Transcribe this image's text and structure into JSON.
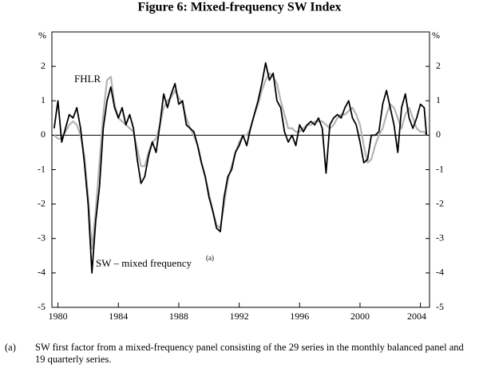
{
  "chart_data": {
    "type": "line",
    "title": "Figure 6: Mixed-frequency SW Index",
    "y_label": "%",
    "annotations": [
      "FHLR",
      "SW – mixed frequency",
      "(a)"
    ],
    "footnote": {
      "marker": "(a)",
      "text": "SW first factor from a mixed-frequency panel consisting of the 29 series in the monthly balanced panel and 19 quarterly series."
    },
    "x": [
      1979.75,
      1980,
      1980.25,
      1980.5,
      1980.75,
      1981,
      1981.25,
      1981.5,
      1981.75,
      1982,
      1982.25,
      1982.5,
      1982.75,
      1983,
      1983.25,
      1983.5,
      1983.75,
      1984,
      1984.25,
      1984.5,
      1984.75,
      1985,
      1985.25,
      1985.5,
      1985.75,
      1986,
      1986.25,
      1986.5,
      1986.75,
      1987,
      1987.25,
      1987.5,
      1987.75,
      1988,
      1988.25,
      1988.5,
      1988.75,
      1989,
      1989.25,
      1989.5,
      1989.75,
      1990,
      1990.25,
      1990.5,
      1990.75,
      1991,
      1991.25,
      1991.5,
      1991.75,
      1992,
      1992.25,
      1992.5,
      1992.75,
      1993,
      1993.25,
      1993.5,
      1993.75,
      1994,
      1994.25,
      1994.5,
      1994.75,
      1995,
      1995.25,
      1995.5,
      1995.75,
      1996,
      1996.25,
      1996.5,
      1996.75,
      1997,
      1997.25,
      1997.5,
      1997.75,
      1998,
      1998.25,
      1998.5,
      1998.75,
      1999,
      1999.25,
      1999.5,
      1999.75,
      2000,
      2000.25,
      2000.5,
      2000.75,
      2001,
      2001.25,
      2001.5,
      2001.75,
      2002,
      2002.25,
      2002.5,
      2002.75,
      2003,
      2003.25,
      2003.5,
      2003.75,
      2004,
      2004.25,
      2004.4
    ],
    "series": [
      {
        "name": "SW – mixed frequency",
        "color": "#000000",
        "width": 1.8,
        "values": [
          0.2,
          1.0,
          -0.2,
          0.2,
          0.6,
          0.5,
          0.8,
          0.2,
          -0.8,
          -2.0,
          -4.0,
          -2.5,
          -1.5,
          0.2,
          1.0,
          1.4,
          0.8,
          0.5,
          0.8,
          0.3,
          0.6,
          0.2,
          -0.7,
          -1.4,
          -1.2,
          -0.6,
          -0.2,
          -0.5,
          0.3,
          1.2,
          0.8,
          1.2,
          1.5,
          0.9,
          1.0,
          0.3,
          0.2,
          0.1,
          -0.3,
          -0.8,
          -1.2,
          -1.8,
          -2.2,
          -2.7,
          -2.8,
          -1.8,
          -1.2,
          -1.0,
          -0.5,
          -0.3,
          0.0,
          -0.3,
          0.2,
          0.6,
          1.0,
          1.5,
          2.1,
          1.6,
          1.8,
          1.0,
          0.8,
          0.1,
          -0.2,
          0.0,
          -0.3,
          0.3,
          0.1,
          0.3,
          0.4,
          0.3,
          0.5,
          0.2,
          -1.1,
          0.3,
          0.5,
          0.6,
          0.5,
          0.8,
          1.0,
          0.5,
          0.3,
          -0.2,
          -0.8,
          -0.7,
          0.0,
          0.0,
          0.1,
          0.9,
          1.3,
          0.8,
          0.3,
          -0.5,
          0.8,
          1.2,
          0.5,
          0.2,
          0.5,
          0.9,
          0.8,
          0.0
        ]
      },
      {
        "name": "FHLR",
        "color": "#b3b3b3",
        "width": 2.2,
        "values": [
          0.0,
          -0.1,
          -0.1,
          0.1,
          0.3,
          0.4,
          0.3,
          0.0,
          -0.6,
          -1.8,
          -3.3,
          -2.2,
          -0.8,
          0.6,
          1.6,
          1.7,
          0.9,
          0.5,
          0.4,
          0.3,
          0.2,
          0.1,
          -0.4,
          -0.9,
          -0.9,
          -0.5,
          -0.2,
          -0.1,
          0.3,
          0.8,
          1.0,
          1.1,
          1.3,
          1.1,
          0.9,
          0.5,
          0.2,
          0.0,
          -0.3,
          -0.8,
          -1.2,
          -1.7,
          -2.2,
          -2.6,
          -2.7,
          -2.0,
          -1.3,
          -0.9,
          -0.5,
          -0.2,
          0.0,
          0.0,
          0.2,
          0.6,
          0.9,
          1.3,
          1.6,
          1.8,
          1.7,
          1.5,
          1.0,
          0.6,
          0.2,
          0.2,
          0.1,
          0.1,
          0.2,
          0.3,
          0.3,
          0.4,
          0.4,
          0.4,
          0.3,
          0.2,
          0.3,
          0.5,
          0.6,
          0.6,
          0.7,
          0.8,
          0.6,
          0.3,
          -0.3,
          -0.8,
          -0.7,
          -0.3,
          0.0,
          0.2,
          0.6,
          0.9,
          0.8,
          0.5,
          0.2,
          0.6,
          0.8,
          0.5,
          0.2,
          0.1,
          0.1,
          0.0
        ]
      }
    ],
    "xlim": [
      1979.6,
      2004.6
    ],
    "xticks": [
      1980,
      1984,
      1988,
      1992,
      1996,
      2000,
      2004
    ],
    "ylim": [
      -5,
      3
    ],
    "yticks": [
      -5,
      -4,
      -3,
      -2,
      -1,
      0,
      1,
      2
    ],
    "zero_line": true
  }
}
